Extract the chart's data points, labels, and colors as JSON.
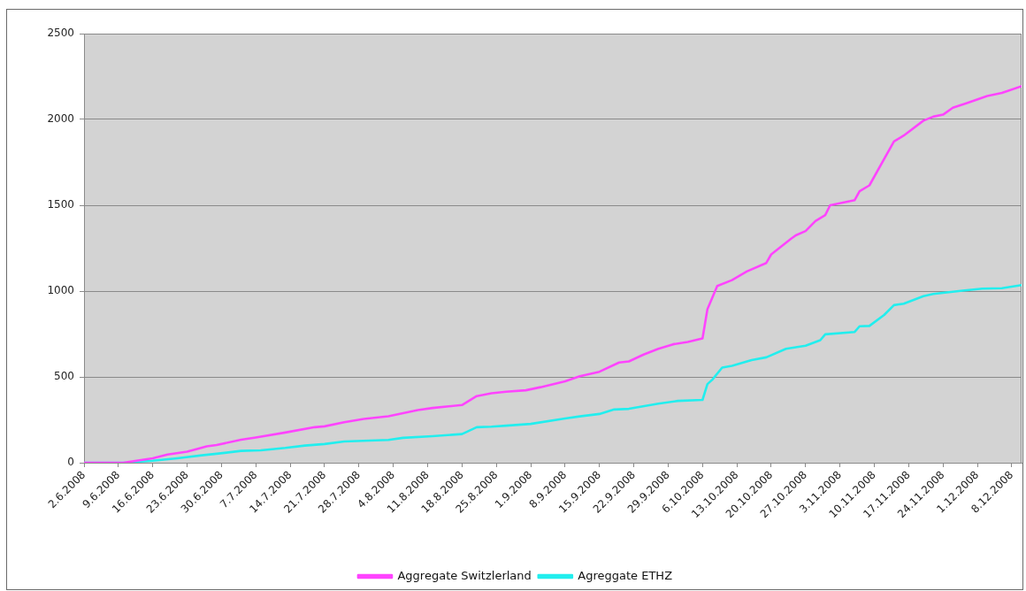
{
  "chart_data": {
    "type": "line",
    "xlim": [
      "2008-06-02",
      "2008-12-10"
    ],
    "xticks": [
      {
        "value": "2008-06-02",
        "label": "2.6.2008"
      },
      {
        "value": "2008-06-09",
        "label": "9.6.2008"
      },
      {
        "value": "2008-06-16",
        "label": "16.6.2008"
      },
      {
        "value": "2008-06-23",
        "label": "23.6.2008"
      },
      {
        "value": "2008-06-30",
        "label": "30.6.2008"
      },
      {
        "value": "2008-07-07",
        "label": "7.7.2008"
      },
      {
        "value": "2008-07-14",
        "label": "14.7.2008"
      },
      {
        "value": "2008-07-21",
        "label": "21.7.2008"
      },
      {
        "value": "2008-07-28",
        "label": "28.7.2008"
      },
      {
        "value": "2008-08-04",
        "label": "4.8.2008"
      },
      {
        "value": "2008-08-11",
        "label": "11.8.2008"
      },
      {
        "value": "2008-08-18",
        "label": "18.8.2008"
      },
      {
        "value": "2008-08-25",
        "label": "25.8.2008"
      },
      {
        "value": "2008-09-01",
        "label": "1.9.2008"
      },
      {
        "value": "2008-09-08",
        "label": "8.9.2008"
      },
      {
        "value": "2008-09-15",
        "label": "15.9.2008"
      },
      {
        "value": "2008-09-22",
        "label": "22.9.2008"
      },
      {
        "value": "2008-09-29",
        "label": "29.9.2008"
      },
      {
        "value": "2008-10-06",
        "label": "6.10.2008"
      },
      {
        "value": "2008-10-13",
        "label": "13.10.2008"
      },
      {
        "value": "2008-10-20",
        "label": "20.10.2008"
      },
      {
        "value": "2008-10-27",
        "label": "27.10.2008"
      },
      {
        "value": "2008-11-03",
        "label": "3.11.2008"
      },
      {
        "value": "2008-11-10",
        "label": "10.11.2008"
      },
      {
        "value": "2008-11-17",
        "label": "17.11.2008"
      },
      {
        "value": "2008-11-24",
        "label": "24.11.2008"
      },
      {
        "value": "2008-12-01",
        "label": "1.12.2008"
      },
      {
        "value": "2008-12-08",
        "label": "8.12.2008"
      }
    ],
    "ylim": [
      0,
      2500
    ],
    "yticks": [
      0,
      500,
      1000,
      1500,
      2000,
      2500
    ],
    "grid": "y",
    "legend": "bottom",
    "marker": "none",
    "line_style": "solid",
    "series": [
      {
        "name": "Aggregate Switzlerland",
        "color": "#ff44ff",
        "x": [
          "2008-06-02",
          "2008-06-10",
          "2008-06-16",
          "2008-06-19",
          "2008-06-23",
          "2008-06-27",
          "2008-06-29",
          "2008-07-04",
          "2008-07-07",
          "2008-07-13",
          "2008-07-19",
          "2008-07-21",
          "2008-07-25",
          "2008-07-29",
          "2008-08-03",
          "2008-08-09",
          "2008-08-12",
          "2008-08-18",
          "2008-08-21",
          "2008-08-24",
          "2008-08-27",
          "2008-08-31",
          "2008-09-03",
          "2008-09-08",
          "2008-09-11",
          "2008-09-15",
          "2008-09-19",
          "2008-09-21",
          "2008-09-24",
          "2008-09-27",
          "2008-09-30",
          "2008-10-03",
          "2008-10-06",
          "2008-10-07",
          "2008-10-09",
          "2008-10-12",
          "2008-10-15",
          "2008-10-19",
          "2008-10-20",
          "2008-10-24",
          "2008-10-25",
          "2008-10-27",
          "2008-10-29",
          "2008-10-31",
          "2008-11-01",
          "2008-11-06",
          "2008-11-07",
          "2008-11-09",
          "2008-11-14",
          "2008-11-16",
          "2008-11-20",
          "2008-11-22",
          "2008-11-24",
          "2008-11-26",
          "2008-11-29",
          "2008-12-03",
          "2008-12-06",
          "2008-12-10"
        ],
        "values": [
          0,
          0,
          26,
          48,
          64,
          95,
          103,
          134,
          147,
          176,
          207,
          212,
          236,
          255,
          271,
          307,
          319,
          336,
          388,
          405,
          414,
          422,
          440,
          474,
          504,
          530,
          584,
          590,
          630,
          664,
          690,
          704,
          724,
          894,
          1030,
          1064,
          1114,
          1164,
          1214,
          1304,
          1325,
          1350,
          1408,
          1443,
          1500,
          1530,
          1582,
          1616,
          1872,
          1906,
          1993,
          2016,
          2028,
          2068,
          2097,
          2137,
          2155,
          2194
        ]
      },
      {
        "name": "Agreggate ETHZ",
        "color": "#22eeee",
        "x": [
          "2008-06-02",
          "2008-06-10",
          "2008-06-16",
          "2008-06-21",
          "2008-06-26",
          "2008-06-29",
          "2008-07-04",
          "2008-07-08",
          "2008-07-13",
          "2008-07-17",
          "2008-07-21",
          "2008-07-25",
          "2008-08-03",
          "2008-08-06",
          "2008-08-12",
          "2008-08-18",
          "2008-08-21",
          "2008-08-24",
          "2008-08-27",
          "2008-09-01",
          "2008-09-08",
          "2008-09-11",
          "2008-09-15",
          "2008-09-18",
          "2008-09-21",
          "2008-09-27",
          "2008-10-01",
          "2008-10-06",
          "2008-10-07",
          "2008-10-08",
          "2008-10-10",
          "2008-10-12",
          "2008-10-16",
          "2008-10-19",
          "2008-10-23",
          "2008-10-27",
          "2008-10-30",
          "2008-10-31",
          "2008-11-06",
          "2008-11-07",
          "2008-11-09",
          "2008-11-12",
          "2008-11-14",
          "2008-11-16",
          "2008-11-20",
          "2008-11-22",
          "2008-11-28",
          "2008-12-02",
          "2008-12-06",
          "2008-12-10"
        ],
        "values": [
          0,
          0,
          12,
          26,
          43,
          52,
          69,
          72,
          86,
          100,
          109,
          124,
          133,
          145,
          155,
          167,
          207,
          210,
          216,
          226,
          258,
          270,
          284,
          310,
          314,
          344,
          360,
          366,
          458,
          484,
          554,
          564,
          598,
          614,
          664,
          682,
          714,
          748,
          762,
          795,
          797,
          861,
          918,
          927,
          970,
          983,
          1003,
          1014,
          1017,
          1035
        ]
      }
    ]
  }
}
